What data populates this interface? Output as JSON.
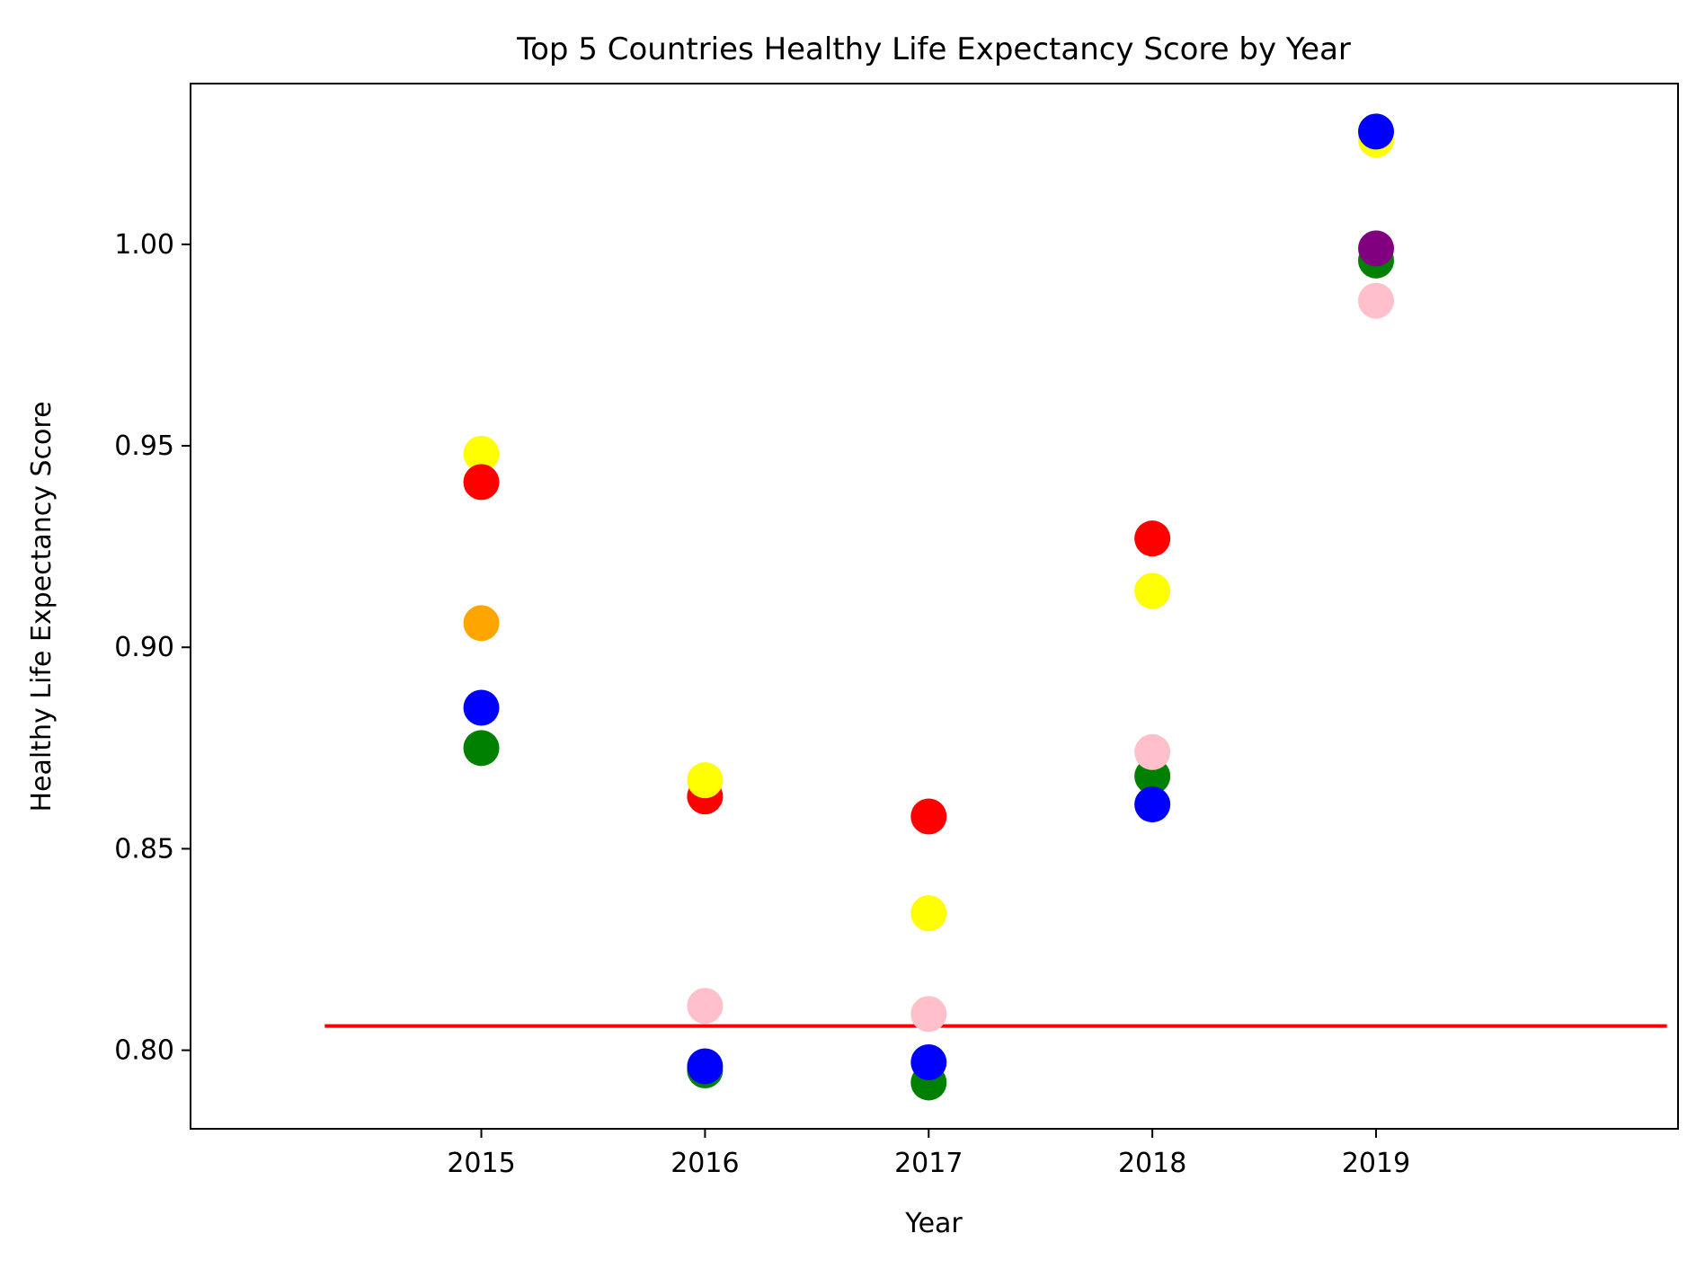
{
  "chart_data": {
    "type": "scatter",
    "title": "Top 5 Countries Healthy Life Expectancy Score by Year",
    "xlabel": "Year",
    "ylabel": "Healthy Life Expectancy Score",
    "x_ticks": [
      "2015",
      "2016",
      "2017",
      "2018",
      "2019"
    ],
    "y_ticks": [
      "0.80",
      "0.85",
      "0.90",
      "0.95",
      "1.00"
    ],
    "xlim": [
      2013.7,
      2020.35
    ],
    "ylim": [
      0.7805,
      1.0399
    ],
    "grid": false,
    "legend": "none",
    "reference_line": {
      "y": 0.806,
      "x_start": 2014.3,
      "x_end": 2020.3,
      "color": "#ff0000"
    },
    "points": [
      {
        "x": 2015,
        "y": 0.948,
        "color": "#ffff00"
      },
      {
        "x": 2015,
        "y": 0.941,
        "color": "#ff0000"
      },
      {
        "x": 2015,
        "y": 0.906,
        "color": "#ffa500"
      },
      {
        "x": 2015,
        "y": 0.885,
        "color": "#0000ff"
      },
      {
        "x": 2015,
        "y": 0.875,
        "color": "#008000"
      },
      {
        "x": 2016,
        "y": 0.863,
        "color": "#ff0000"
      },
      {
        "x": 2016,
        "y": 0.867,
        "color": "#ffff00"
      },
      {
        "x": 2016,
        "y": 0.811,
        "color": "#ffc0cb"
      },
      {
        "x": 2016,
        "y": 0.795,
        "color": "#008000"
      },
      {
        "x": 2016,
        "y": 0.796,
        "color": "#0000ff"
      },
      {
        "x": 2017,
        "y": 0.858,
        "color": "#ff0000"
      },
      {
        "x": 2017,
        "y": 0.834,
        "color": "#ffff00"
      },
      {
        "x": 2017,
        "y": 0.809,
        "color": "#ffc0cb"
      },
      {
        "x": 2017,
        "y": 0.792,
        "color": "#008000"
      },
      {
        "x": 2017,
        "y": 0.797,
        "color": "#0000ff"
      },
      {
        "x": 2018,
        "y": 0.927,
        "color": "#ff0000"
      },
      {
        "x": 2018,
        "y": 0.914,
        "color": "#ffff00"
      },
      {
        "x": 2018,
        "y": 0.868,
        "color": "#008000"
      },
      {
        "x": 2018,
        "y": 0.874,
        "color": "#ffc0cb"
      },
      {
        "x": 2018,
        "y": 0.861,
        "color": "#0000ff"
      },
      {
        "x": 2019,
        "y": 1.026,
        "color": "#ffff00"
      },
      {
        "x": 2019,
        "y": 1.028,
        "color": "#0000ff"
      },
      {
        "x": 2019,
        "y": 0.996,
        "color": "#008000"
      },
      {
        "x": 2019,
        "y": 0.999,
        "color": "#800080"
      },
      {
        "x": 2019,
        "y": 0.986,
        "color": "#ffc0cb"
      }
    ]
  }
}
